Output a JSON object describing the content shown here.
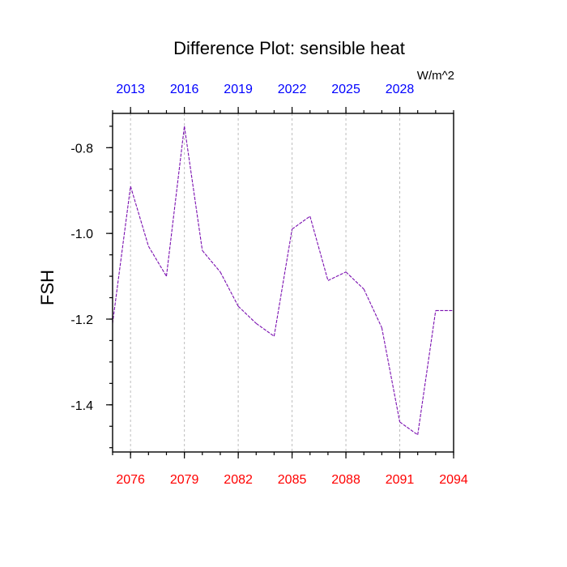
{
  "chart_data": {
    "type": "line",
    "title": "Difference Plot: sensible heat",
    "units_label": "W/m^2",
    "ylabel": "FSH",
    "xlabel": "",
    "x": [
      2075,
      2076,
      2077,
      2078,
      2079,
      2080,
      2081,
      2082,
      2083,
      2084,
      2085,
      2086,
      2087,
      2088,
      2089,
      2090,
      2091,
      2092,
      2093,
      2094
    ],
    "series": [
      {
        "values": [
          -1.21,
          -0.89,
          -1.03,
          -1.1,
          -0.75,
          -1.04,
          -1.09,
          -1.17,
          -1.21,
          -1.24,
          -0.99,
          -0.96,
          -1.11,
          -1.09,
          -1.13,
          -1.22,
          -1.44,
          -1.47,
          -1.18,
          -1.18
        ],
        "color": "#7a0fb0"
      }
    ],
    "xlim": [
      2075,
      2094
    ],
    "ylim": [
      -1.51,
      -0.72
    ],
    "xticks_bottom": [
      {
        "value": 2076,
        "label": "2076"
      },
      {
        "value": 2079,
        "label": "2079"
      },
      {
        "value": 2082,
        "label": "2082"
      },
      {
        "value": 2085,
        "label": "2085"
      },
      {
        "value": 2088,
        "label": "2088"
      },
      {
        "value": 2091,
        "label": "2091"
      },
      {
        "value": 2094,
        "label": "2094"
      }
    ],
    "xticks_top": [
      {
        "value": 2076,
        "label": "2013"
      },
      {
        "value": 2079,
        "label": "2016"
      },
      {
        "value": 2082,
        "label": "2019"
      },
      {
        "value": 2085,
        "label": "2022"
      },
      {
        "value": 2088,
        "label": "2025"
      },
      {
        "value": 2091,
        "label": "2028"
      }
    ],
    "yticks": [
      {
        "value": -0.8,
        "label": "-0.8"
      },
      {
        "value": -1.0,
        "label": "-1.0"
      },
      {
        "value": -1.2,
        "label": "-1.2"
      },
      {
        "value": -1.4,
        "label": "-1.4"
      }
    ],
    "grid": "vertical dashed",
    "colors": {
      "bottom_tick_labels": "#ff0000",
      "top_tick_labels": "#0000ff",
      "line": "#7a0fb0"
    }
  }
}
